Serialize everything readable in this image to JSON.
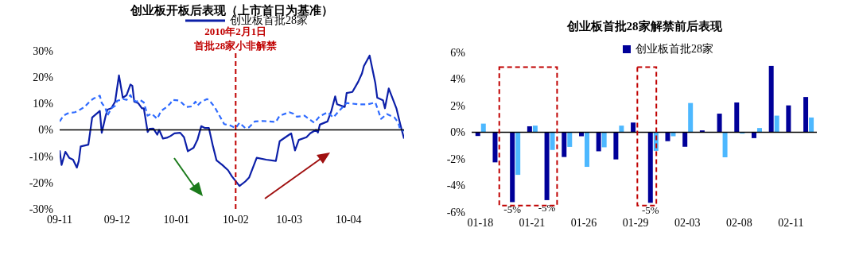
{
  "chart_data": [
    {
      "type": "line",
      "title": "创业板开板后表现（上市首日为基准）",
      "legend": "top",
      "marker": "none",
      "grid": false,
      "xlim": [
        "2009-11-01",
        "2010-04-30"
      ],
      "xticks": [
        {
          "value": "2009-11-01",
          "label": "09-11"
        },
        {
          "value": "2009-12-01",
          "label": "09-12"
        },
        {
          "value": "2010-01-01",
          "label": "10-01"
        },
        {
          "value": "2010-02-01",
          "label": "10-02"
        },
        {
          "value": "2010-03-01",
          "label": "10-03"
        },
        {
          "value": "2010-04-01",
          "label": "10-04"
        }
      ],
      "ylim": [
        -30,
        30
      ],
      "yticks": [
        {
          "value": -30,
          "label": "-30%"
        },
        {
          "value": -20,
          "label": "-20%"
        },
        {
          "value": -10,
          "label": "-10%"
        },
        {
          "value": 0,
          "label": "0%"
        },
        {
          "value": 10,
          "label": "10%"
        },
        {
          "value": 20,
          "label": "20%"
        },
        {
          "value": 30,
          "label": "30%"
        }
      ],
      "ref_lines": [
        {
          "axis": "x",
          "value": "2010-02-01",
          "label": "2010年2月1日首批28家小非解禁",
          "color": "#c00000",
          "line_style": "dashed"
        },
        {
          "axis": "y",
          "value": 0,
          "color": "#000000",
          "line_style": "solid"
        }
      ],
      "series": [
        {
          "name": "创业板首批28家",
          "color": "#0c1fa8",
          "line_style": "solid",
          "x": [
            "2009-11-01",
            "2009-11-02",
            "2009-11-04",
            "2009-11-06",
            "2009-11-08",
            "2009-11-10",
            "2009-11-11",
            "2009-11-12",
            "2009-11-16",
            "2009-11-18",
            "2009-11-22",
            "2009-11-23",
            "2009-11-25",
            "2009-11-26",
            "2009-11-28",
            "2009-11-30",
            "2009-12-02",
            "2009-12-04",
            "2009-12-06",
            "2009-12-08",
            "2009-12-09",
            "2009-12-10",
            "2009-12-12",
            "2009-12-14",
            "2009-12-15",
            "2009-12-17",
            "2009-12-18",
            "2009-12-20",
            "2009-12-22",
            "2009-12-23",
            "2009-12-25",
            "2009-12-27",
            "2009-12-29",
            "2009-12-31",
            "2010-01-03",
            "2010-01-05",
            "2010-01-07",
            "2010-01-10",
            "2010-01-12",
            "2010-01-14",
            "2010-01-16",
            "2010-01-18",
            "2010-01-20",
            "2010-01-22",
            "2010-01-25",
            "2010-01-28",
            "2010-01-30",
            "2010-02-03",
            "2010-02-06",
            "2010-02-08",
            "2010-02-12",
            "2010-02-17",
            "2010-02-22",
            "2010-02-24",
            "2010-03-01",
            "2010-03-02",
            "2010-03-04",
            "2010-03-06",
            "2010-03-10",
            "2010-03-12",
            "2010-03-15",
            "2010-03-16",
            "2010-03-17",
            "2010-03-21",
            "2010-03-23",
            "2010-03-25",
            "2010-03-26",
            "2010-03-30",
            "2010-03-31",
            "2010-04-03",
            "2010-04-06",
            "2010-04-08",
            "2010-04-09",
            "2010-04-12",
            "2010-04-15",
            "2010-04-16",
            "2010-04-19",
            "2010-04-20",
            "2010-04-22",
            "2010-04-26",
            "2010-04-28",
            "2010-04-30"
          ],
          "values": [
            -7.8,
            -13.3,
            -8.3,
            -10.6,
            -11.3,
            -14.3,
            -11.8,
            -6.3,
            -5.6,
            4.7,
            7.2,
            -1.1,
            5.2,
            7.7,
            8.2,
            10.7,
            20.7,
            12.2,
            13.2,
            17.2,
            16.7,
            10.7,
            10.2,
            8.2,
            8.2,
            -0.8,
            0.4,
            0.5,
            -1.8,
            0,
            -3.3,
            -3,
            -2.3,
            -1.3,
            -1.1,
            -2.8,
            -8.1,
            -6.8,
            -3.8,
            1.4,
            0.7,
            0.7,
            -5.8,
            -11.6,
            -13.3,
            -15.3,
            -17.6,
            -21.3,
            -19.6,
            -18.1,
            -10.6,
            -11.3,
            -11.8,
            -4.3,
            -1.8,
            -1.3,
            -7.8,
            -3.8,
            -2.8,
            -1.3,
            0,
            -1,
            2,
            3.2,
            7.2,
            12.7,
            9.7,
            8.7,
            14,
            14.4,
            18.2,
            21.4,
            24.2,
            28.2,
            17.7,
            12.2,
            11.2,
            8.2,
            15.7,
            8.2,
            2.2,
            -3.3
          ]
        },
        {
          "color": "#2f6bff",
          "line_style": "dashed",
          "x": [
            "2009-11-01",
            "2009-11-03",
            "2009-11-05",
            "2009-11-09",
            "2009-11-11",
            "2009-11-14",
            "2009-11-17",
            "2009-11-19",
            "2009-11-22",
            "2009-11-23",
            "2009-11-25",
            "2009-11-26",
            "2009-11-28",
            "2009-11-30",
            "2009-12-01",
            "2009-12-04",
            "2009-12-06",
            "2009-12-08",
            "2009-12-09",
            "2009-12-11",
            "2009-12-13",
            "2009-12-15",
            "2009-12-17",
            "2009-12-19",
            "2009-12-22",
            "2009-12-24",
            "2009-12-27",
            "2009-12-29",
            "2009-12-30",
            "2010-01-02",
            "2010-01-04",
            "2010-01-06",
            "2010-01-09",
            "2010-01-11",
            "2010-01-12",
            "2010-01-14",
            "2010-01-17",
            "2010-01-18",
            "2010-01-21",
            "2010-01-26",
            "2010-01-29",
            "2010-02-01",
            "2010-02-03",
            "2010-02-06",
            "2010-02-08",
            "2010-02-11",
            "2010-02-15",
            "2010-02-22",
            "2010-02-24",
            "2010-03-01",
            "2010-03-03",
            "2010-03-05",
            "2010-03-09",
            "2010-03-14",
            "2010-03-17",
            "2010-03-21",
            "2010-03-24",
            "2010-03-27",
            "2010-03-31",
            "2010-04-06",
            "2010-04-11",
            "2010-04-15",
            "2010-04-18",
            "2010-04-21",
            "2010-04-25",
            "2010-04-27",
            "2010-04-28",
            "2010-04-30"
          ],
          "values": [
            3.2,
            5.4,
            6.2,
            6.7,
            7.4,
            8.7,
            11,
            12,
            13,
            10.2,
            8.2,
            5.4,
            8.2,
            9.2,
            11,
            11.7,
            11.4,
            13.2,
            11.7,
            10.7,
            11.4,
            10.4,
            5.4,
            6.2,
            4.2,
            7.2,
            8.7,
            10.2,
            11.4,
            11.2,
            10.2,
            8.7,
            8.9,
            10.7,
            9.2,
            10.7,
            11.7,
            11.4,
            8.7,
            2.2,
            1.7,
            0.7,
            2.7,
            0.7,
            1,
            3.2,
            3.4,
            3,
            5.4,
            6.7,
            6.2,
            5,
            5.4,
            2.7,
            5.2,
            6.7,
            4.7,
            7.2,
            10.2,
            9.7,
            9.7,
            10.4,
            4.2,
            6,
            4.7,
            2.7,
            0,
            -0.3
          ]
        }
      ]
    },
    {
      "type": "bar",
      "title": "创业板首批28家解禁前后表现",
      "legend": "top",
      "grid": false,
      "categories": [
        "01-18",
        null,
        null,
        "01-21",
        null,
        null,
        "01-26",
        null,
        null,
        "01-29",
        null,
        null,
        "02-03",
        null,
        null,
        "02-08",
        null,
        null,
        "02-11",
        null
      ],
      "ylim": [
        -6,
        6
      ],
      "yticks": [
        {
          "value": -6,
          "label": "-6%"
        },
        {
          "value": -4,
          "label": "-4%"
        },
        {
          "value": -2,
          "label": "-2%"
        },
        {
          "value": 0,
          "label": "0%"
        },
        {
          "value": 2,
          "label": "2%"
        },
        {
          "value": 4,
          "label": "4%"
        },
        {
          "value": 6,
          "label": "6%"
        }
      ],
      "ref_lines": [
        {
          "axis": "y",
          "value": 0,
          "color": "#000000",
          "line_style": "solid"
        }
      ],
      "series": [
        {
          "name": "创业板首批28家",
          "color": "#000099",
          "values": [
            -0.28,
            -2.26,
            -5.25,
            0.45,
            -5.1,
            -1.86,
            -0.3,
            -1.43,
            -2.04,
            0.73,
            -5.3,
            -0.67,
            -1.09,
            0.14,
            1.4,
            2.24,
            -0.44,
            4.99,
            2.02,
            2.65
          ],
          "value_labels": [
            null,
            null,
            "-5%",
            null,
            "-5%",
            null,
            null,
            null,
            null,
            null,
            "-5%",
            null,
            null,
            null,
            null,
            null,
            null,
            null,
            null,
            null
          ]
        },
        {
          "color": "#4db8ff",
          "values": [
            0.65,
            0,
            -3.2,
            0.5,
            -1.33,
            -1.1,
            -2.6,
            -1.13,
            0.5,
            0,
            -1.4,
            -0.3,
            2.2,
            0,
            -1.88,
            -0.1,
            0.32,
            1.25,
            0,
            1.11
          ]
        }
      ]
    }
  ]
}
